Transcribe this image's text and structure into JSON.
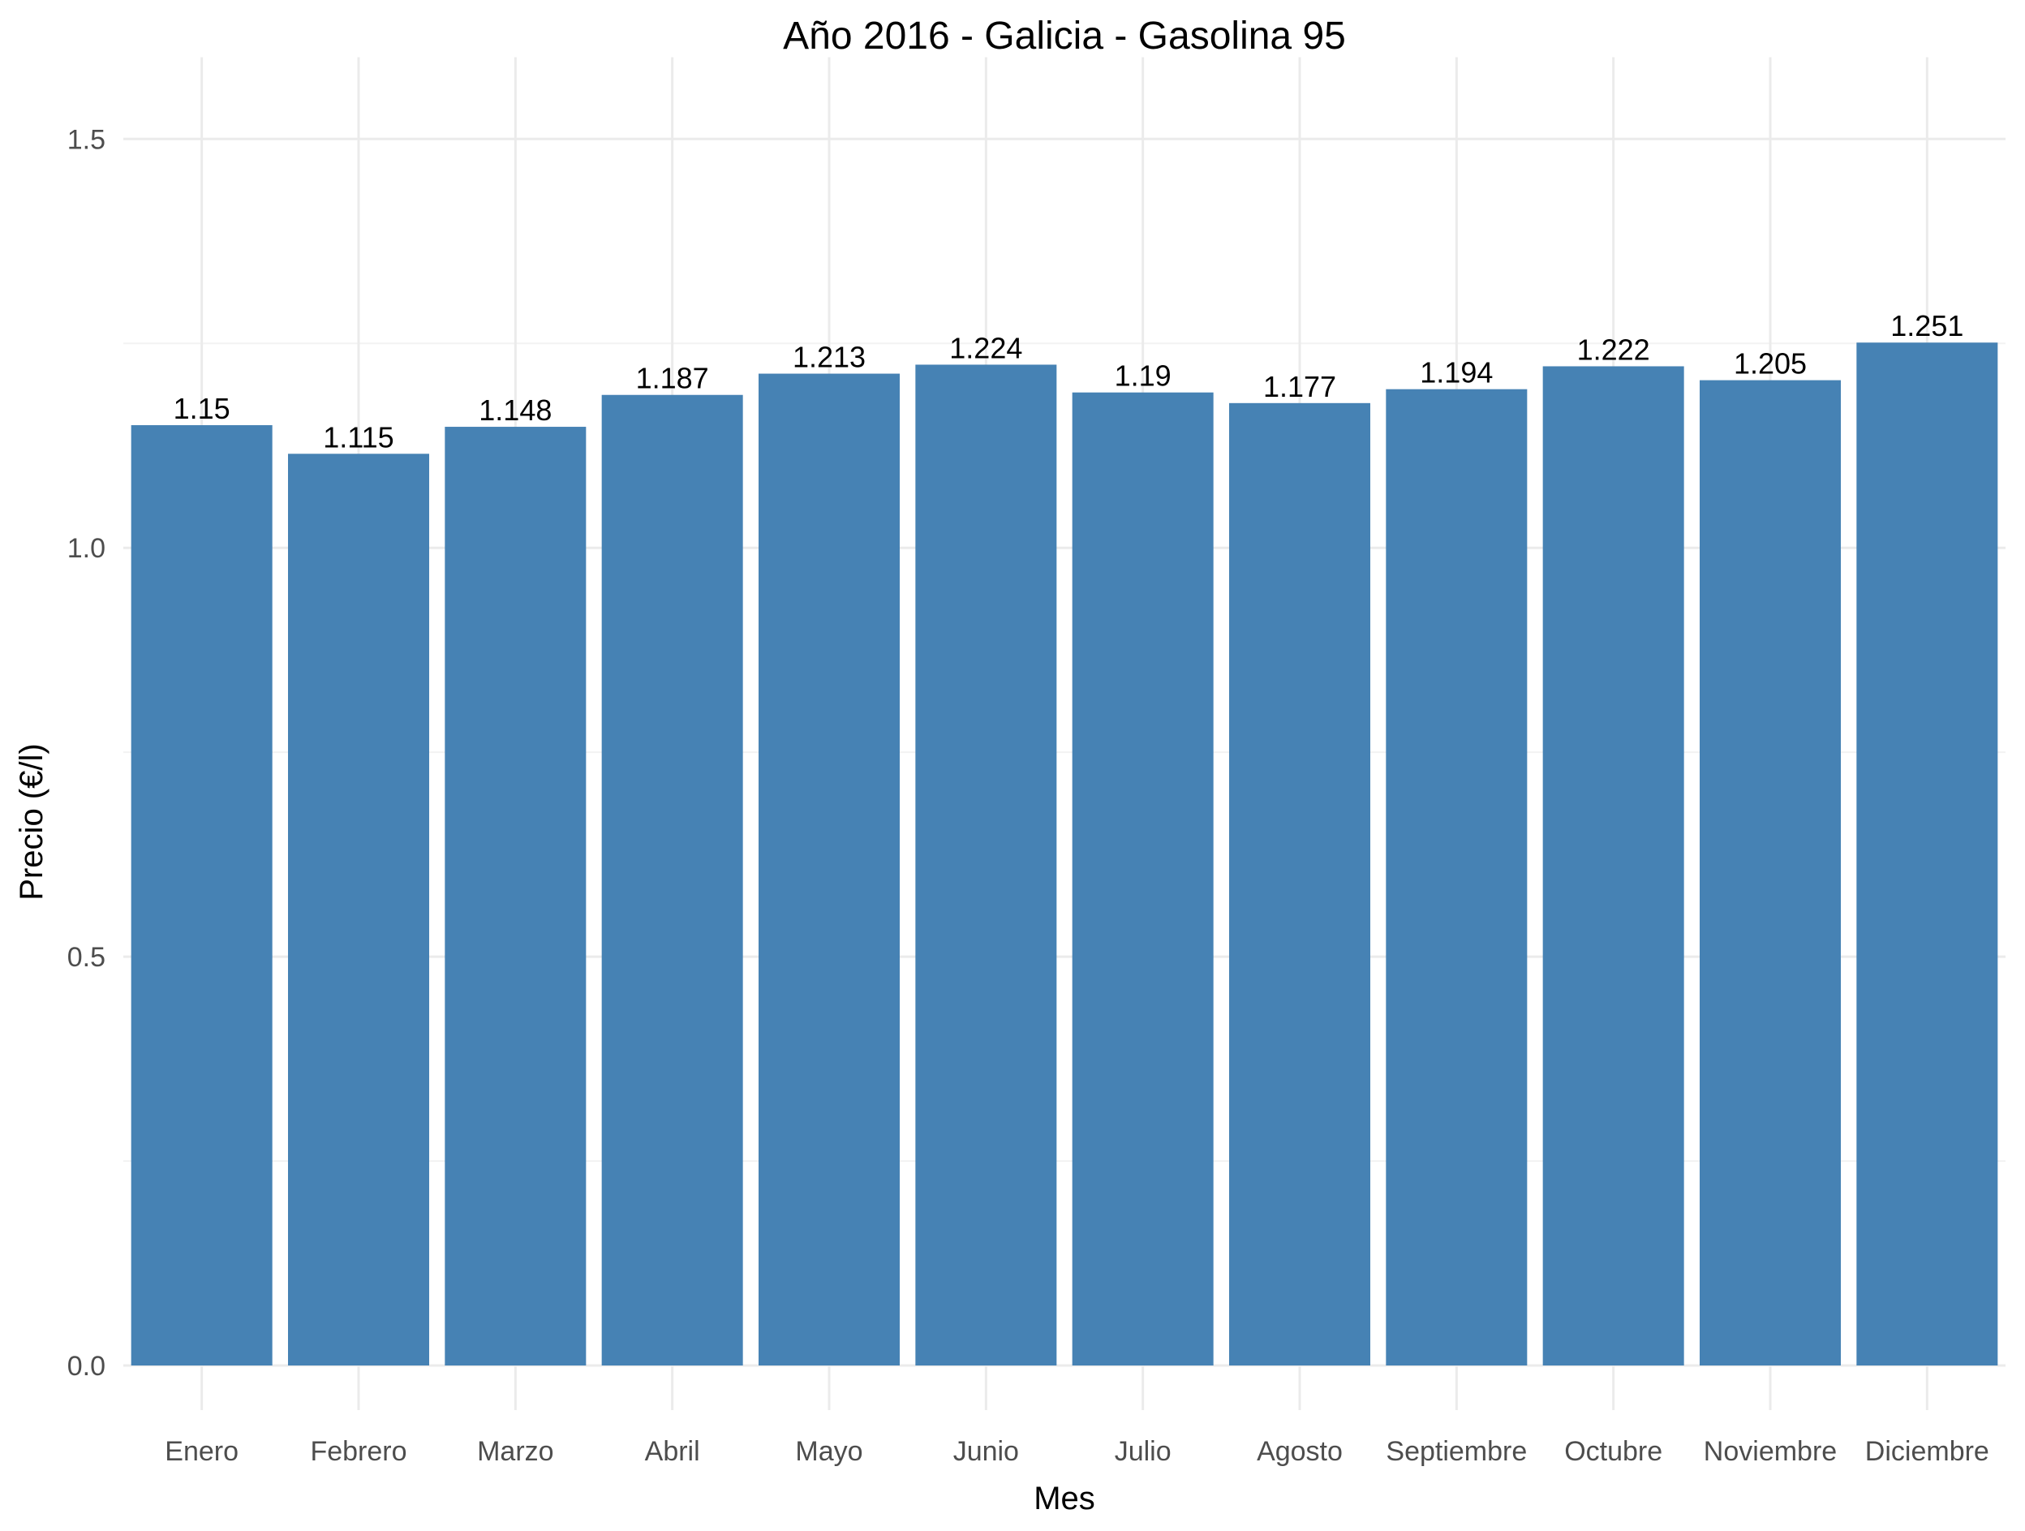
{
  "chart_data": {
    "type": "bar",
    "title": "Año 2016 - Galicia - Gasolina 95",
    "xlabel": "Mes",
    "ylabel": "Precio (€/l)",
    "categories": [
      "Enero",
      "Febrero",
      "Marzo",
      "Abril",
      "Mayo",
      "Junio",
      "Julio",
      "Agosto",
      "Septiembre",
      "Octubre",
      "Noviembre",
      "Diciembre"
    ],
    "values": [
      1.15,
      1.115,
      1.148,
      1.187,
      1.213,
      1.224,
      1.19,
      1.177,
      1.194,
      1.222,
      1.205,
      1.251
    ],
    "data_labels": [
      "1.15",
      "1.115",
      "1.148",
      "1.187",
      "1.213",
      "1.224",
      "1.19",
      "1.177",
      "1.194",
      "1.222",
      "1.205",
      "1.251"
    ],
    "ylim": [
      0,
      1.6
    ],
    "yticks": [
      0,
      0.5,
      1.0,
      1.5
    ],
    "ytick_labels": [
      "0.0",
      "0.5",
      "1.0",
      "1.5"
    ],
    "grid": true,
    "bar_color": "#4682b4"
  }
}
